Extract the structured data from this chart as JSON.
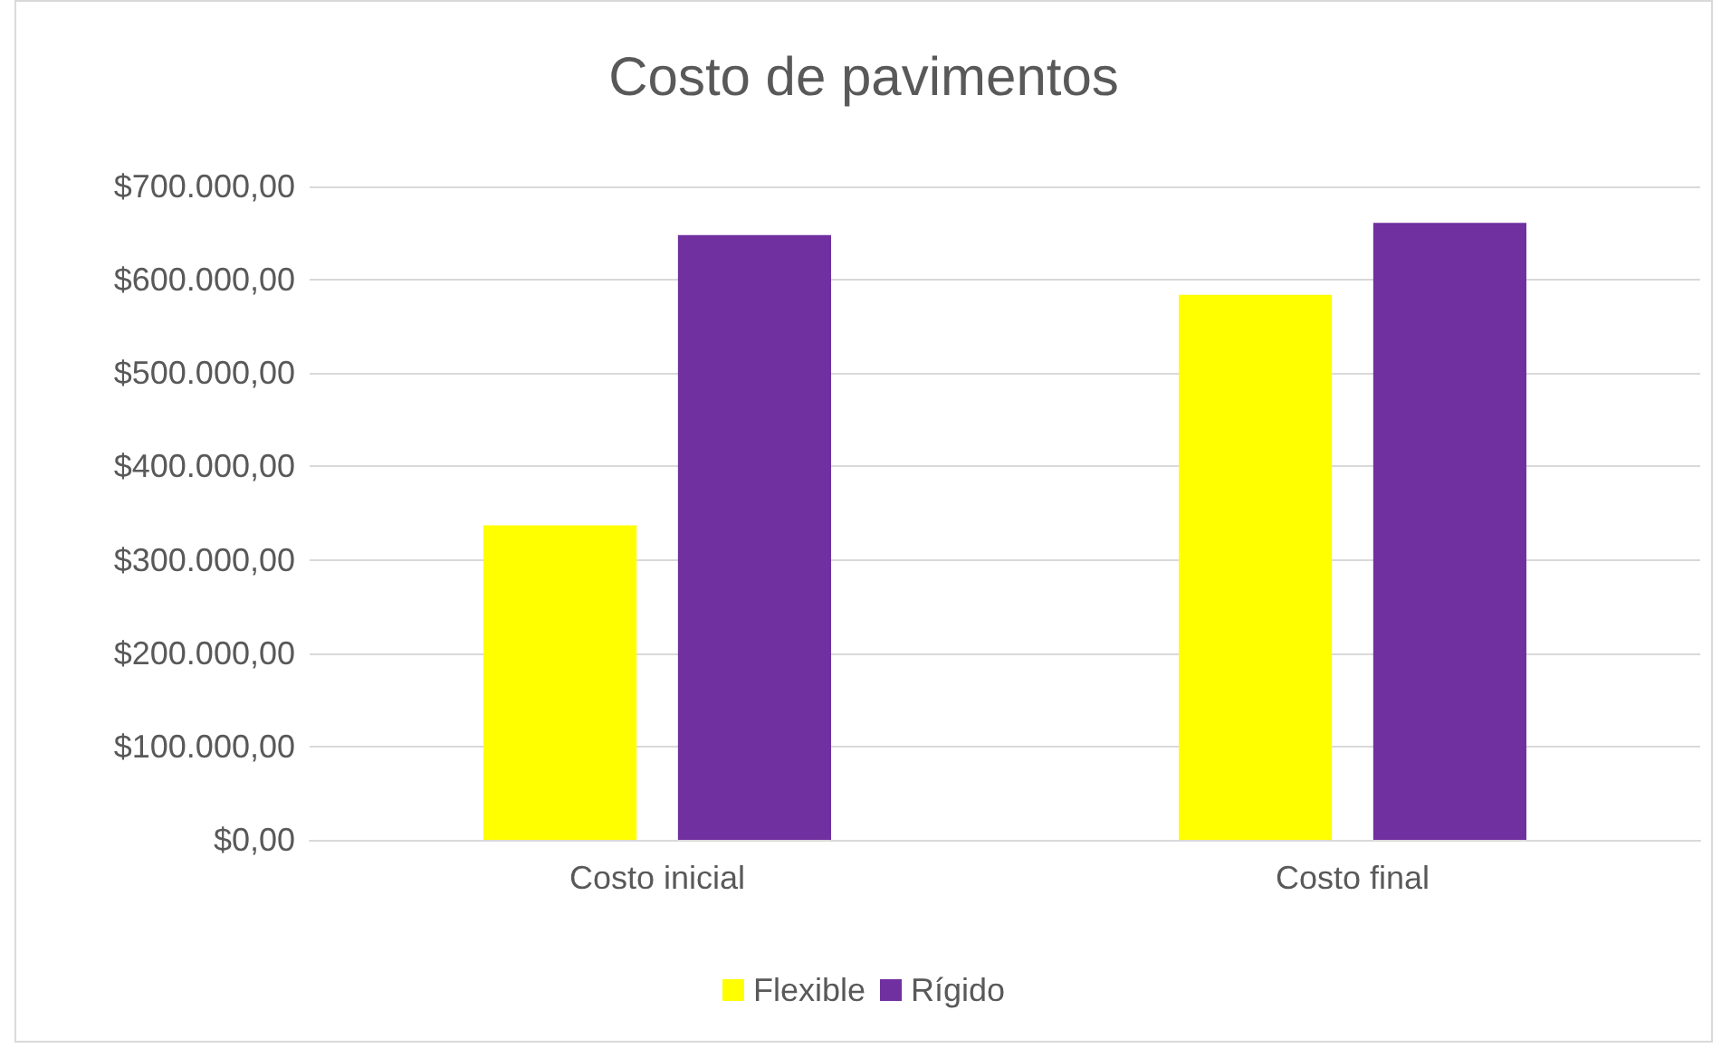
{
  "chart_data": {
    "type": "bar",
    "title": "Costo de pavimentos",
    "categories": [
      "Costo inicial",
      "Costo final"
    ],
    "series": [
      {
        "name": "Flexible",
        "color": "#ffff00",
        "values": [
          337000,
          584000
        ]
      },
      {
        "name": "Rígido",
        "color": "#7030a0",
        "values": [
          648000,
          661000
        ]
      }
    ],
    "ylim": [
      0,
      700000
    ],
    "yticks": [
      {
        "value": 0,
        "label": "$0,00"
      },
      {
        "value": 100000,
        "label": "$100.000,00"
      },
      {
        "value": 200000,
        "label": "$200.000,00"
      },
      {
        "value": 300000,
        "label": "$300.000,00"
      },
      {
        "value": 400000,
        "label": "$400.000,00"
      },
      {
        "value": 500000,
        "label": "$500.000,00"
      },
      {
        "value": 600000,
        "label": "$600.000,00"
      },
      {
        "value": 700000,
        "label": "$700.000,00"
      }
    ],
    "grid": "y",
    "legend": "bottom"
  }
}
